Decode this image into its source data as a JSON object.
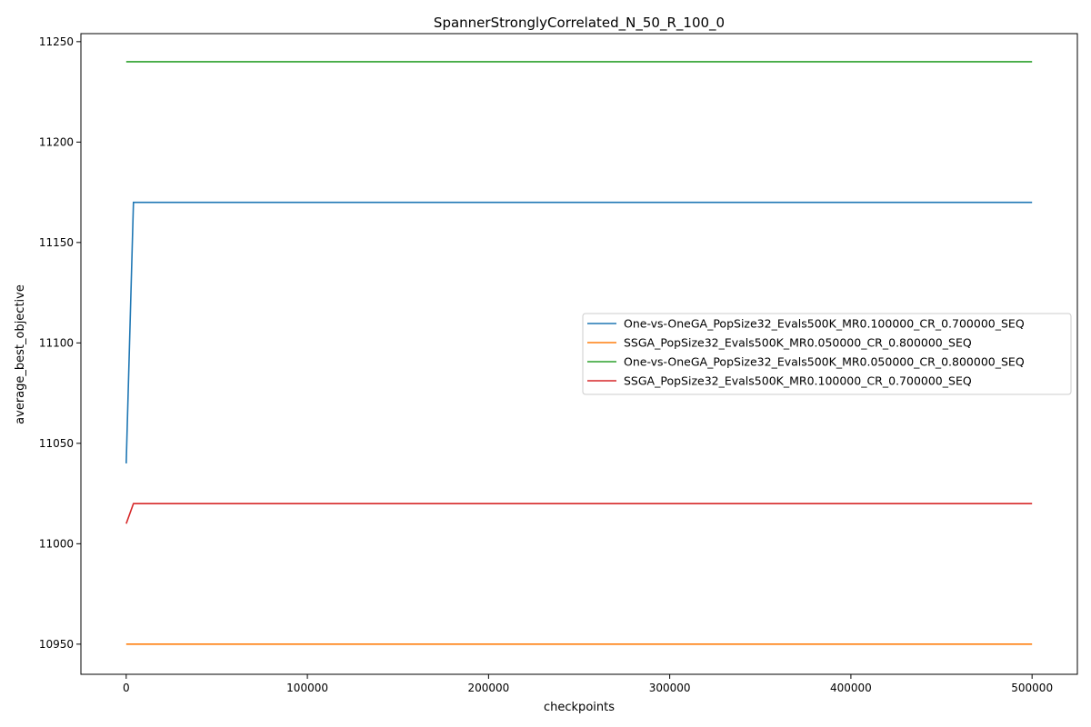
{
  "chart_data": {
    "type": "line",
    "title": "SpannerStronglyCorrelated_N_50_R_100_0",
    "xlabel": "checkpoints",
    "ylabel": "average_best_objective",
    "xlim": [
      -25000,
      525000
    ],
    "ylim": [
      10935,
      11254
    ],
    "xticks": [
      0,
      100000,
      200000,
      300000,
      400000,
      500000
    ],
    "yticks": [
      10950,
      11000,
      11050,
      11100,
      11150,
      11200,
      11250
    ],
    "grid": false,
    "legend_position": "center-right",
    "series": [
      {
        "name": "One-vs-OneGA_PopSize32_Evals500K_MR0.100000_CR_0.700000_SEQ",
        "color": "#1f77b4",
        "x": [
          0,
          4000,
          500000
        ],
        "y": [
          11040,
          11170,
          11170
        ]
      },
      {
        "name": "SSGA_PopSize32_Evals500K_MR0.050000_CR_0.800000_SEQ",
        "color": "#ff7f0e",
        "x": [
          0,
          4000,
          500000
        ],
        "y": [
          10950,
          10950,
          10950
        ]
      },
      {
        "name": "One-vs-OneGA_PopSize32_Evals500K_MR0.050000_CR_0.800000_SEQ",
        "color": "#2ca02c",
        "x": [
          0,
          4000,
          500000
        ],
        "y": [
          11240,
          11240,
          11240
        ]
      },
      {
        "name": "SSGA_PopSize32_Evals500K_MR0.100000_CR_0.700000_SEQ",
        "color": "#d62728",
        "x": [
          0,
          4000,
          500000
        ],
        "y": [
          11010,
          11020,
          11020
        ]
      }
    ]
  }
}
